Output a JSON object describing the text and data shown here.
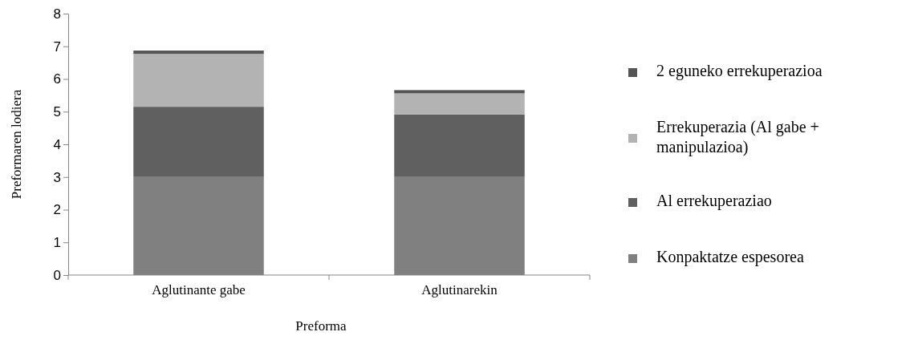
{
  "chart_data": {
    "type": "bar",
    "stacked": true,
    "xlabel": "Preforma",
    "ylabel": "Preformaren lodiera",
    "categories": [
      "Aglutinante gabe",
      "Aglutinarekin"
    ],
    "series": [
      {
        "name": "Konpaktatze espesorea",
        "color": "#808080",
        "values": [
          3.0,
          3.0
        ]
      },
      {
        "name": "Al errekuperaziao",
        "color": "#606060",
        "values": [
          2.15,
          1.91
        ]
      },
      {
        "name": "Errekuperazia (Al gabe + manipulazioa)",
        "color": "#b3b3b3",
        "values": [
          1.62,
          0.65
        ]
      },
      {
        "name": "2 eguneko errekuperazioa",
        "color": "#555555",
        "values": [
          0.1,
          0.1
        ]
      }
    ],
    "ylim": [
      0,
      8
    ],
    "yticks": [
      0,
      1,
      2,
      3,
      4,
      5,
      6,
      7,
      8
    ],
    "grid": false,
    "legend": "right"
  }
}
